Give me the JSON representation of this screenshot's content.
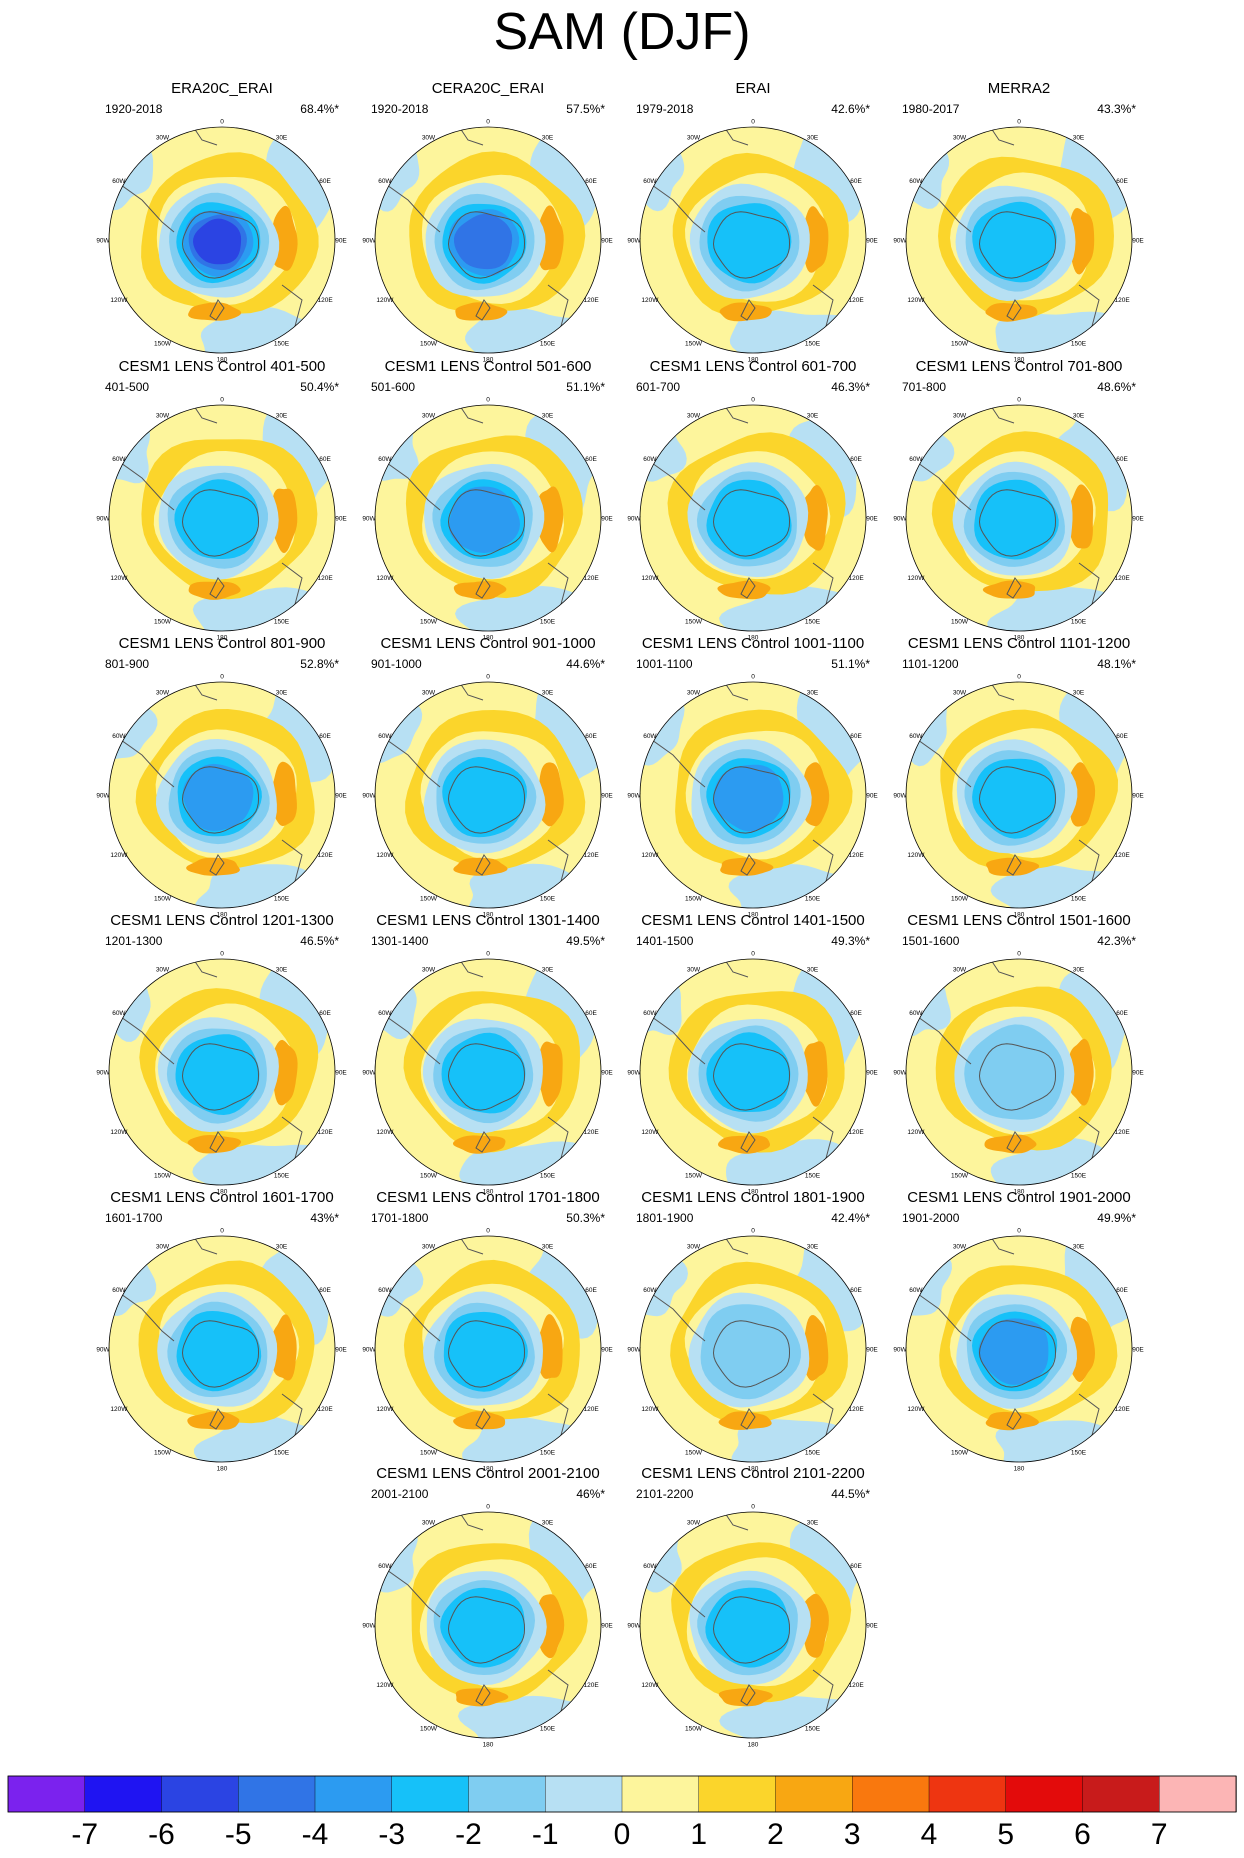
{
  "title": "SAM (DJF)",
  "colorbar": {
    "colors": [
      "#7b22ee",
      "#1f14f2",
      "#2b44e3",
      "#3074e6",
      "#2c9bf1",
      "#16c1f9",
      "#7fcdf1",
      "#b7e0f3",
      "#fdf59c",
      "#fbd52b",
      "#f8a712",
      "#f9780e",
      "#ee3511",
      "#e30b0b",
      "#c81b1b",
      "#fcb5b5"
    ],
    "labels": [
      "-7",
      "-6",
      "-5",
      "-4",
      "-3",
      "-2",
      "-1",
      "0",
      "1",
      "2",
      "3",
      "4",
      "5",
      "6",
      "7"
    ]
  },
  "chart_data": [
    {
      "type": "heatmap",
      "title": "ERA20C_ERAI",
      "left": "1920-2018",
      "right": "68.4%*",
      "center_level": -6
    },
    {
      "type": "heatmap",
      "title": "CERA20C_ERAI",
      "left": "1920-2018",
      "right": "57.5%*",
      "center_level": -5
    },
    {
      "type": "heatmap",
      "title": "ERAI",
      "left": "1979-2018",
      "right": "42.6%*",
      "center_level": -3
    },
    {
      "type": "heatmap",
      "title": "MERRA2",
      "left": "1980-2017",
      "right": "43.3%*",
      "center_level": -3
    },
    {
      "type": "heatmap",
      "title": "CESM1 LENS Control 401-500",
      "left": "401-500",
      "right": "50.4%*",
      "center_level": -3
    },
    {
      "type": "heatmap",
      "title": "CESM1 LENS Control 501-600",
      "left": "501-600",
      "right": "51.1%*",
      "center_level": -4
    },
    {
      "type": "heatmap",
      "title": "CESM1 LENS Control 601-700",
      "left": "601-700",
      "right": "46.3%*",
      "center_level": -3
    },
    {
      "type": "heatmap",
      "title": "CESM1 LENS Control 701-800",
      "left": "701-800",
      "right": "48.6%*",
      "center_level": -3
    },
    {
      "type": "heatmap",
      "title": "CESM1 LENS Control 801-900",
      "left": "801-900",
      "right": "52.8%*",
      "center_level": -4
    },
    {
      "type": "heatmap",
      "title": "CESM1 LENS Control 901-1000",
      "left": "901-1000",
      "right": "44.6%*",
      "center_level": -3
    },
    {
      "type": "heatmap",
      "title": "CESM1 LENS Control 1001-1100",
      "left": "1001-1100",
      "right": "51.1%*",
      "center_level": -4
    },
    {
      "type": "heatmap",
      "title": "CESM1 LENS Control 1101-1200",
      "left": "1101-1200",
      "right": "48.1%*",
      "center_level": -3
    },
    {
      "type": "heatmap",
      "title": "CESM1 LENS Control 1201-1300",
      "left": "1201-1300",
      "right": "46.5%*",
      "center_level": -3
    },
    {
      "type": "heatmap",
      "title": "CESM1 LENS Control 1301-1400",
      "left": "1301-1400",
      "right": "49.5%*",
      "center_level": -3
    },
    {
      "type": "heatmap",
      "title": "CESM1 LENS Control 1401-1500",
      "left": "1401-1500",
      "right": "49.3%*",
      "center_level": -3
    },
    {
      "type": "heatmap",
      "title": "CESM1 LENS Control 1501-1600",
      "left": "1501-1600",
      "right": "42.3%*",
      "center_level": -2
    },
    {
      "type": "heatmap",
      "title": "CESM1 LENS Control 1601-1700",
      "left": "1601-1700",
      "right": "43%*",
      "center_level": -3
    },
    {
      "type": "heatmap",
      "title": "CESM1 LENS Control 1701-1800",
      "left": "1701-1800",
      "right": "50.3%*",
      "center_level": -3
    },
    {
      "type": "heatmap",
      "title": "CESM1 LENS Control 1801-1900",
      "left": "1801-1900",
      "right": "42.4%*",
      "center_level": -2
    },
    {
      "type": "heatmap",
      "title": "CESM1 LENS Control 1901-2000",
      "left": "1901-2000",
      "right": "49.9%*",
      "center_level": -4
    },
    {
      "type": "heatmap",
      "title": "CESM1 LENS Control 2001-2100",
      "left": "2001-2100",
      "right": "46%*",
      "center_level": -3
    },
    {
      "type": "heatmap",
      "title": "CESM1 LENS Control 2101-2200",
      "left": "2101-2200",
      "right": "44.5%*",
      "center_level": -3
    }
  ],
  "map_tick_labels": [
    "0",
    "30E",
    "60E",
    "90E",
    "120E",
    "150E",
    "180",
    "150W",
    "120W",
    "90W",
    "60W",
    "30W"
  ]
}
